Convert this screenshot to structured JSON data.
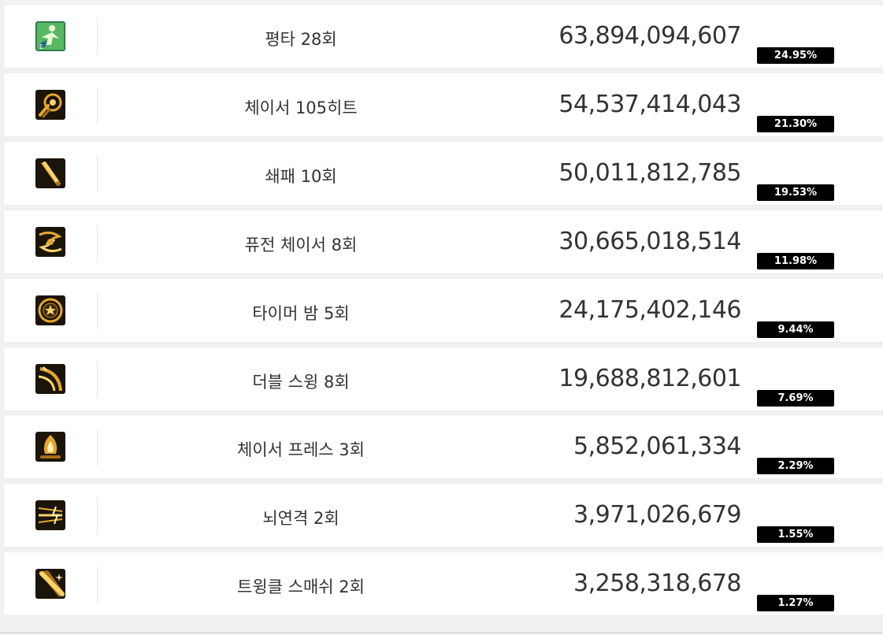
{
  "rows": [
    {
      "skill": "평타 28회",
      "damage": "63,894,094,607",
      "percent": "24.95%",
      "icon": "kick-icon"
    },
    {
      "skill": "체이서 105히트",
      "damage": "54,537,414,043",
      "percent": "21.30%",
      "icon": "chaser-orb-icon"
    },
    {
      "skill": "쇄패 10회",
      "damage": "50,011,812,785",
      "percent": "19.53%",
      "icon": "club-icon"
    },
    {
      "skill": "퓨전 체이서 8회",
      "damage": "30,665,018,514",
      "percent": "11.98%",
      "icon": "fusion-chaser-icon"
    },
    {
      "skill": "타이머 밤 5회",
      "damage": "24,175,402,146",
      "percent": "9.44%",
      "icon": "timer-bomb-icon"
    },
    {
      "skill": "더블 스윙 8회",
      "damage": "19,688,812,601",
      "percent": "7.69%",
      "icon": "double-swing-icon"
    },
    {
      "skill": "체이서 프레스 3회",
      "damage": "5,852,061,334",
      "percent": "2.29%",
      "icon": "chaser-press-icon"
    },
    {
      "skill": "뇌연격 2회",
      "damage": "3,971,026,679",
      "percent": "1.55%",
      "icon": "lightning-strike-icon"
    },
    {
      "skill": "트윙클 스매쉬 2회",
      "damage": "3,258,318,678",
      "percent": "1.27%",
      "icon": "twinkle-smash-icon"
    }
  ],
  "colors": {
    "icon_bg": "#1b1408",
    "icon_gold": "#e2a72c",
    "icon_green": "#6fd24a",
    "badge_bg": "#000000",
    "badge_text": "#ffffff"
  }
}
